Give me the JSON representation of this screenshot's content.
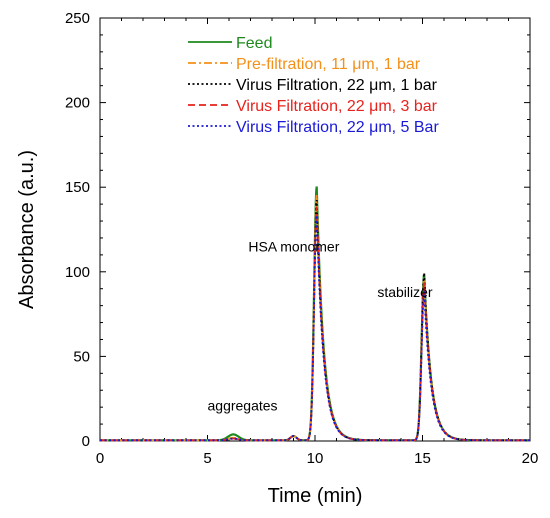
{
  "chart_data": {
    "type": "line",
    "title": "",
    "xlabel": "Time (min)",
    "ylabel": "Absorbance (a.u.)",
    "xlim": [
      0,
      20
    ],
    "ylim": [
      0,
      250
    ],
    "x_ticks": [
      0,
      5,
      10,
      15,
      20
    ],
    "y_ticks": [
      0,
      50,
      100,
      150,
      200,
      250
    ],
    "grid": false,
    "legend_position": "top-center",
    "annotations": [
      {
        "text": "aggregates",
        "x": 5.0,
        "y": 18
      },
      {
        "text": "HSA monomer",
        "x": 6.9,
        "y": 112
      },
      {
        "text": "stabilizer",
        "x": 12.9,
        "y": 85
      }
    ],
    "series": [
      {
        "name": "Feed",
        "color": "#1e8a1e",
        "dash": "solid",
        "peaks": [
          {
            "t": 6.2,
            "h": 3.5,
            "w": 0.35
          },
          {
            "t": 9.0,
            "h": 2.5,
            "w": 0.2
          },
          {
            "t": 10.08,
            "h": 150
          },
          {
            "t": 15.08,
            "h": 98
          }
        ]
      },
      {
        "name": "Pre-filtration, 11 μm, 1 bar",
        "color": "#f39019",
        "dash": "dashdot",
        "peaks": [
          {
            "t": 6.2,
            "h": 1.5,
            "w": 0.35
          },
          {
            "t": 9.0,
            "h": 2.5,
            "w": 0.2
          },
          {
            "t": 10.08,
            "h": 145
          },
          {
            "t": 15.08,
            "h": 96
          }
        ]
      },
      {
        "name": "Virus Filtration, 22 μm, 1 bar",
        "color": "#000000",
        "dash": "dotted",
        "peaks": [
          {
            "t": 6.2,
            "h": 1.0,
            "w": 0.35
          },
          {
            "t": 9.0,
            "h": 2.5,
            "w": 0.2
          },
          {
            "t": 10.08,
            "h": 142
          },
          {
            "t": 15.08,
            "h": 99
          }
        ]
      },
      {
        "name": "Virus Filtration, 22 μm, 3 bar",
        "color": "#e8221c",
        "dash": "dashed",
        "peaks": [
          {
            "t": 6.2,
            "h": 1.0,
            "w": 0.35
          },
          {
            "t": 9.0,
            "h": 2.5,
            "w": 0.2
          },
          {
            "t": 10.08,
            "h": 138
          },
          {
            "t": 15.08,
            "h": 93
          }
        ]
      },
      {
        "name": "Virus Filtration, 22 μm, 5 Bar",
        "color": "#1a1ad6",
        "dash": "dotted",
        "peaks": [
          {
            "t": 6.2,
            "h": 1.0,
            "w": 0.35
          },
          {
            "t": 9.0,
            "h": 2.5,
            "w": 0.2
          },
          {
            "t": 10.08,
            "h": 133
          },
          {
            "t": 15.08,
            "h": 88
          }
        ]
      }
    ]
  }
}
